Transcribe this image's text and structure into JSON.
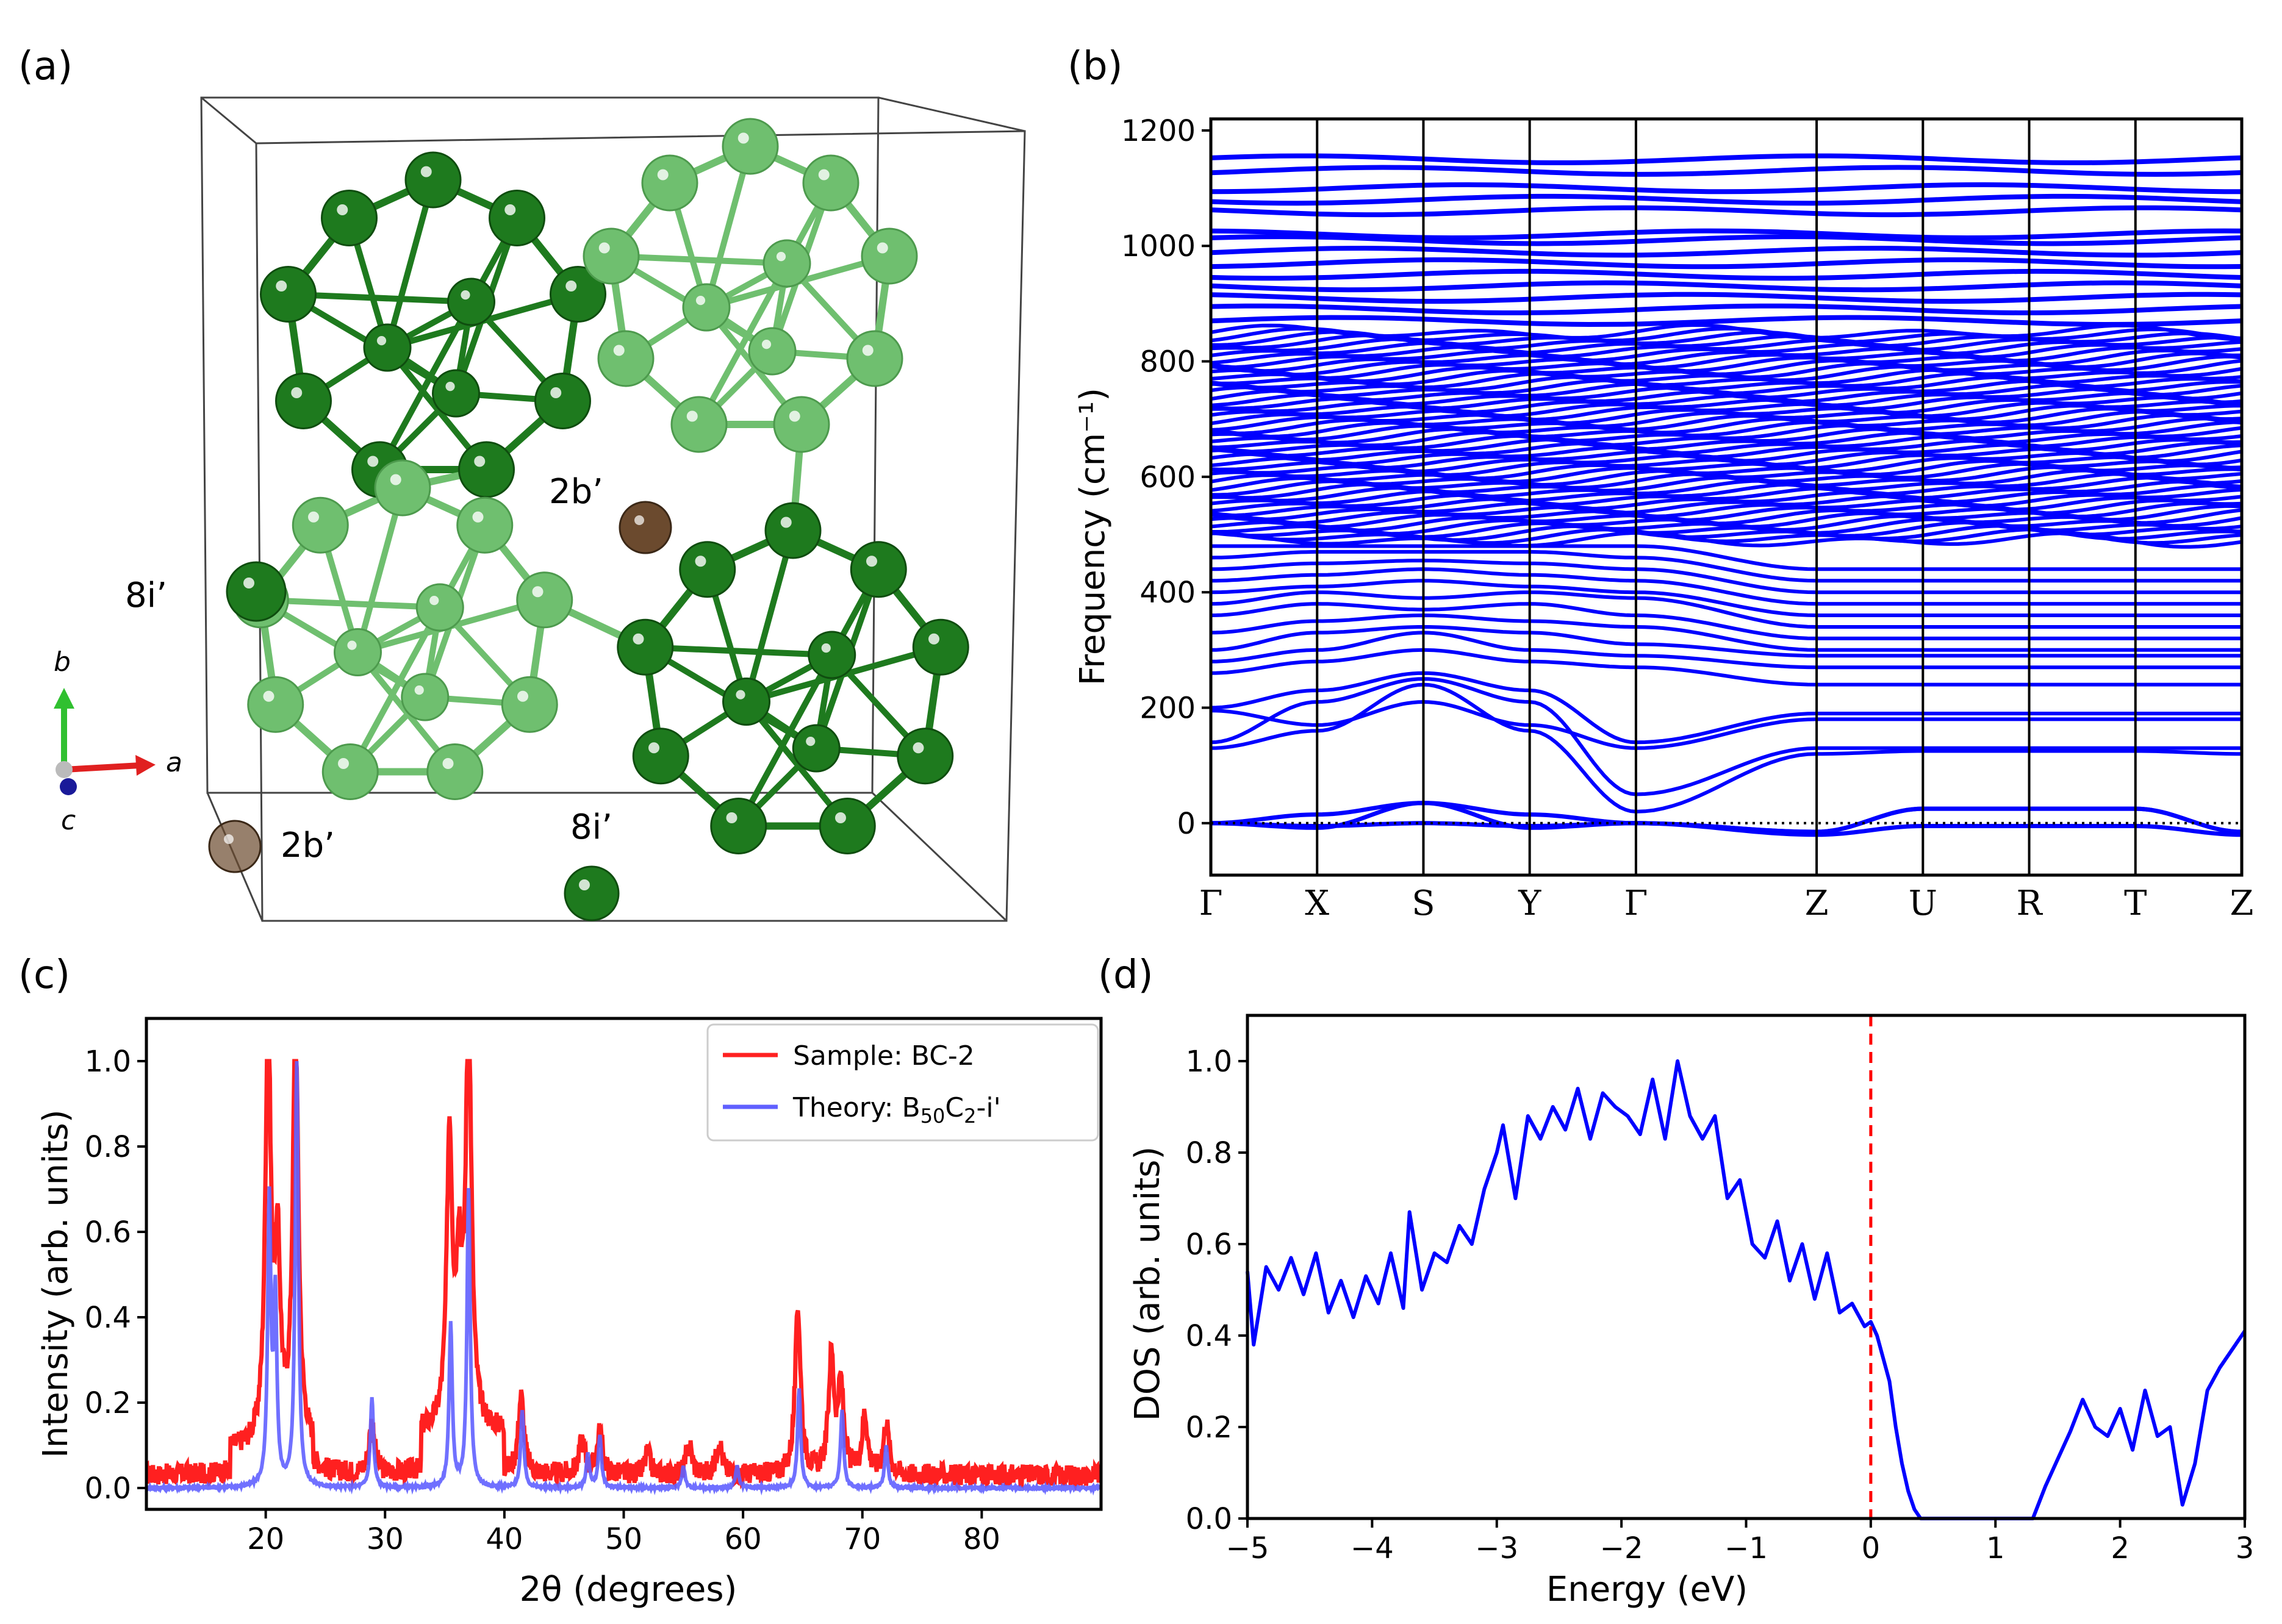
{
  "panels": {
    "a": "(a)",
    "b": "(b)",
    "c": "(c)",
    "d": "(d)"
  },
  "structure": {
    "site_labels": [
      "2b’",
      "8i’",
      "2b’",
      "8i’"
    ],
    "axis_labels": {
      "a": "a",
      "b": "b",
      "c": "c"
    },
    "colors": {
      "boron_dark": "#1e7a1e",
      "boron_light": "#6fbf6f",
      "carbon": "#6b4a2e",
      "axis_a": "#e02020",
      "axis_b": "#30c030",
      "axis_c": "#1a1a99"
    }
  },
  "chart_data": [
    {
      "panel": "b",
      "type": "line",
      "ylabel": "Frequency (cm⁻¹)",
      "ylim": [
        -90,
        1220
      ],
      "yticks": [
        0,
        200,
        400,
        600,
        800,
        1000,
        1200
      ],
      "kpoints": [
        "Γ",
        "X",
        "S",
        "Y",
        "Γ",
        "Z",
        "U",
        "R",
        "T",
        "Z"
      ],
      "kpoint_positions": [
        0,
        1,
        2,
        3,
        4,
        5.7,
        6.7,
        7.7,
        8.7,
        9.7
      ],
      "zero_line": "dotted",
      "color": "#0000ff",
      "acoustic_branches": [
        {
          "name": "",
          "values": [
            0,
            15,
            35,
            15,
            0,
            -15,
            25,
            25,
            25,
            -15
          ]
        },
        {
          "name": "",
          "values": [
            0,
            -8,
            35,
            -8,
            0,
            -15,
            25,
            25,
            25,
            -15
          ]
        },
        {
          "name": "",
          "values": [
            0,
            -5,
            0,
            -5,
            0,
            -20,
            -5,
            -5,
            -5,
            -20
          ]
        }
      ],
      "low_optic_branches": [
        {
          "name": "",
          "values": [
            130,
            160,
            240,
            160,
            20,
            120,
            125,
            125,
            125,
            120
          ]
        },
        {
          "name": "",
          "values": [
            140,
            210,
            250,
            210,
            50,
            130,
            130,
            130,
            130,
            130
          ]
        },
        {
          "name": "",
          "values": [
            195,
            170,
            210,
            170,
            130,
            180,
            180,
            180,
            180,
            180
          ]
        },
        {
          "name": "",
          "values": [
            200,
            230,
            260,
            230,
            140,
            190,
            190,
            190,
            190,
            190
          ]
        },
        {
          "name": "",
          "values": [
            260,
            280,
            300,
            280,
            270,
            240,
            240,
            240,
            240,
            240
          ]
        },
        {
          "name": "",
          "values": [
            280,
            300,
            330,
            300,
            290,
            270,
            270,
            270,
            270,
            270
          ]
        },
        {
          "name": "",
          "values": [
            300,
            330,
            340,
            330,
            310,
            290,
            290,
            290,
            290,
            290
          ]
        },
        {
          "name": "",
          "values": [
            330,
            350,
            360,
            350,
            340,
            300,
            300,
            300,
            300,
            300
          ]
        },
        {
          "name": "",
          "values": [
            360,
            380,
            370,
            380,
            360,
            320,
            320,
            320,
            320,
            320
          ]
        },
        {
          "name": "",
          "values": [
            380,
            400,
            390,
            400,
            390,
            340,
            340,
            340,
            340,
            340
          ]
        },
        {
          "name": "",
          "values": [
            400,
            410,
            420,
            410,
            400,
            360,
            360,
            360,
            360,
            360
          ]
        },
        {
          "name": "",
          "values": [
            420,
            430,
            440,
            430,
            420,
            380,
            380,
            380,
            380,
            380
          ]
        },
        {
          "name": "",
          "values": [
            440,
            450,
            455,
            450,
            440,
            400,
            400,
            400,
            400,
            400
          ]
        },
        {
          "name": "",
          "values": [
            460,
            470,
            470,
            470,
            460,
            420,
            420,
            420,
            420,
            420
          ]
        },
        {
          "name": "",
          "values": [
            480,
            480,
            480,
            480,
            480,
            440,
            440,
            440,
            440,
            440
          ]
        }
      ],
      "dense_band": [
        490,
        850
      ],
      "high_bands": [
        870,
        890,
        910,
        930,
        950,
        970,
        990,
        1010,
        1020,
        1060,
        1080,
        1100,
        1130,
        1150
      ]
    },
    {
      "panel": "c",
      "type": "line",
      "xlabel": "2θ (degrees)",
      "ylabel": "Intensity (arb. units)",
      "xlim": [
        10,
        90
      ],
      "ylim": [
        -0.05,
        1.1
      ],
      "xticks": [
        20,
        30,
        40,
        50,
        60,
        70,
        80
      ],
      "yticks": [
        "0.0",
        "0.2",
        "0.4",
        "0.6",
        "0.8",
        "1.0"
      ],
      "legend": "top-right",
      "series": [
        {
          "name": "Sample: BC-2",
          "name_sub_parts": {
            "main": "Sample: BC-2"
          },
          "color": "#ff2020",
          "peaks": [
            [
              20.2,
              0.98
            ],
            [
              21.0,
              0.42
            ],
            [
              22.5,
              1.0
            ],
            [
              28.9,
              0.12
            ],
            [
              35.4,
              0.68
            ],
            [
              36.2,
              0.35
            ],
            [
              37.0,
              0.98
            ],
            [
              41.4,
              0.18
            ],
            [
              46.5,
              0.08
            ],
            [
              48.0,
              0.1
            ],
            [
              52.0,
              0.05
            ],
            [
              55.5,
              0.07
            ],
            [
              58.0,
              0.08
            ],
            [
              64.6,
              0.39
            ],
            [
              67.4,
              0.27
            ],
            [
              68.2,
              0.2
            ],
            [
              70.2,
              0.14
            ],
            [
              72.0,
              0.12
            ]
          ],
          "baseline": 0.03
        },
        {
          "name": "Theory: B50C2-i'",
          "color": "#6060ff",
          "peaks": [
            [
              20.3,
              0.66
            ],
            [
              20.8,
              0.43
            ],
            [
              22.6,
              1.0
            ],
            [
              28.9,
              0.21
            ],
            [
              35.5,
              0.38
            ],
            [
              37.0,
              0.7
            ],
            [
              41.5,
              0.18
            ],
            [
              47.0,
              0.08
            ],
            [
              48.0,
              0.12
            ],
            [
              55.0,
              0.05
            ],
            [
              59.5,
              0.05
            ],
            [
              64.7,
              0.23
            ],
            [
              68.3,
              0.18
            ],
            [
              72.0,
              0.1
            ]
          ],
          "baseline": 0.0
        }
      ]
    },
    {
      "panel": "d",
      "type": "line",
      "xlabel": "Energy (eV)",
      "ylabel": "DOS (arb. units)",
      "xlim": [
        -5,
        3
      ],
      "ylim": [
        0,
        1.1
      ],
      "xticks": [
        "−5",
        "−4",
        "−3",
        "−2",
        "−1",
        "0",
        "1",
        "2",
        "3"
      ],
      "yticks": [
        "0.0",
        "0.2",
        "0.4",
        "0.6",
        "0.8",
        "1.0"
      ],
      "fermi_level": 0,
      "fermi_color": "#ff0000",
      "series": [
        {
          "name": "",
          "color": "#0000ff",
          "x": [
            -5.0,
            -4.95,
            -4.85,
            -4.75,
            -4.65,
            -4.55,
            -4.45,
            -4.35,
            -4.25,
            -4.15,
            -4.05,
            -3.95,
            -3.85,
            -3.75,
            -3.7,
            -3.6,
            -3.5,
            -3.4,
            -3.3,
            -3.2,
            -3.1,
            -3.0,
            -2.95,
            -2.85,
            -2.75,
            -2.65,
            -2.55,
            -2.45,
            -2.35,
            -2.25,
            -2.15,
            -2.05,
            -1.95,
            -1.85,
            -1.75,
            -1.65,
            -1.55,
            -1.45,
            -1.35,
            -1.25,
            -1.15,
            -1.05,
            -0.95,
            -0.85,
            -0.75,
            -0.65,
            -0.55,
            -0.45,
            -0.35,
            -0.25,
            -0.15,
            -0.05,
            0.0,
            0.05,
            0.1,
            0.15,
            0.2,
            0.25,
            0.3,
            0.35,
            0.4,
            0.5,
            1.3,
            1.4,
            1.5,
            1.6,
            1.7,
            1.8,
            1.9,
            2.0,
            2.1,
            2.2,
            2.3,
            2.4,
            2.5,
            2.6,
            2.7,
            2.8,
            2.9,
            3.0
          ],
          "y": [
            0.54,
            0.38,
            0.55,
            0.5,
            0.57,
            0.49,
            0.58,
            0.45,
            0.52,
            0.44,
            0.53,
            0.47,
            0.58,
            0.46,
            0.67,
            0.5,
            0.58,
            0.56,
            0.64,
            0.6,
            0.72,
            0.8,
            0.86,
            0.7,
            0.88,
            0.83,
            0.9,
            0.85,
            0.94,
            0.83,
            0.93,
            0.9,
            0.88,
            0.84,
            0.96,
            0.83,
            1.0,
            0.88,
            0.83,
            0.88,
            0.7,
            0.74,
            0.6,
            0.57,
            0.65,
            0.52,
            0.6,
            0.48,
            0.58,
            0.45,
            0.47,
            0.42,
            0.43,
            0.4,
            0.35,
            0.3,
            0.2,
            0.12,
            0.06,
            0.02,
            0.0,
            0.0,
            0.0,
            0.07,
            0.13,
            0.19,
            0.26,
            0.2,
            0.18,
            0.24,
            0.15,
            0.28,
            0.18,
            0.2,
            0.03,
            0.12,
            0.28,
            0.33,
            0.37,
            0.41
          ]
        }
      ]
    }
  ]
}
